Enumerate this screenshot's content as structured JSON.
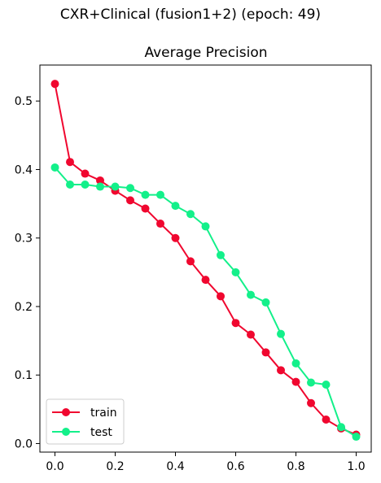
{
  "figure": {
    "suptitle": "CXR+Clinical (fusion1+2) (epoch: 49)"
  },
  "chart_data": {
    "type": "line",
    "title": "Average Precision",
    "xlabel": "",
    "ylabel": "",
    "xlim": [
      -0.05,
      1.05
    ],
    "ylim": [
      -0.0125,
      0.5525
    ],
    "xticks": [
      0.0,
      0.2,
      0.4,
      0.6,
      0.8,
      1.0
    ],
    "xtick_labels": [
      "0.0",
      "0.2",
      "0.4",
      "0.6",
      "0.8",
      "1.0"
    ],
    "yticks": [
      0.0,
      0.1,
      0.2,
      0.3,
      0.4,
      0.5
    ],
    "ytick_labels": [
      "0.0",
      "0.1",
      "0.2",
      "0.3",
      "0.4",
      "0.5"
    ],
    "grid": false,
    "legend_position": "lower-left",
    "x": [
      0.0,
      0.05,
      0.1,
      0.15,
      0.2,
      0.25,
      0.3,
      0.35,
      0.4,
      0.45,
      0.5,
      0.55,
      0.6,
      0.65,
      0.7,
      0.75,
      0.8,
      0.85,
      0.9,
      0.95,
      1.0
    ],
    "series": [
      {
        "name": "train",
        "color": "#f0072f",
        "values": [
          0.525,
          0.411,
          0.394,
          0.384,
          0.369,
          0.355,
          0.343,
          0.321,
          0.3,
          0.266,
          0.239,
          0.215,
          0.176,
          0.159,
          0.133,
          0.107,
          0.09,
          0.059,
          0.035,
          0.022,
          0.013
        ]
      },
      {
        "name": "test",
        "color": "#13f08a",
        "values": [
          0.403,
          0.378,
          0.378,
          0.375,
          0.375,
          0.373,
          0.363,
          0.363,
          0.347,
          0.335,
          0.317,
          0.275,
          0.25,
          0.217,
          0.206,
          0.16,
          0.117,
          0.089,
          0.086,
          0.024,
          0.01
        ]
      }
    ]
  }
}
